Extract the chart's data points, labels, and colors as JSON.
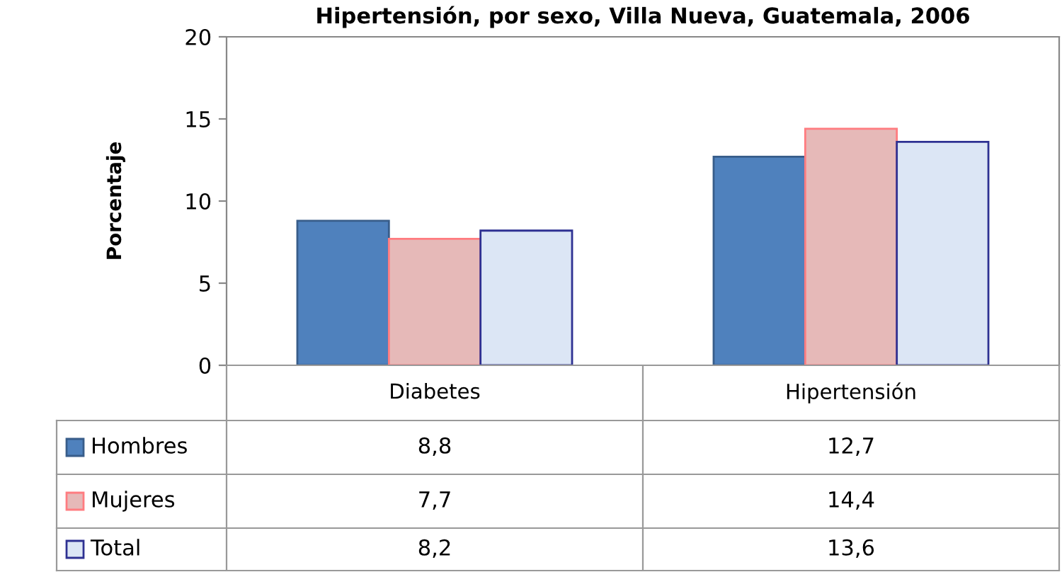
{
  "chart_data": {
    "type": "bar",
    "title": "Hipertensión, por sexo, Villa Nueva, Guatemala, 2006",
    "ylabel": "Porcentaje",
    "categories": [
      "Diabetes",
      "Hipertensión"
    ],
    "series": [
      {
        "name": "Hombres",
        "color": "#4f81bd",
        "values": [
          8.8,
          12.7
        ],
        "value_labels": [
          "8,8",
          "12,7"
        ]
      },
      {
        "name": "Mujeres",
        "color": "#e6b9b8",
        "values": [
          7.7,
          14.4
        ],
        "value_labels": [
          "7,7",
          "14,4"
        ]
      },
      {
        "name": "Total",
        "color": "#dce6f5",
        "values": [
          8.2,
          13.6
        ],
        "value_labels": [
          "8,2",
          "13,6"
        ]
      }
    ],
    "ylim": [
      0,
      20
    ],
    "yticks": [
      0,
      5,
      10,
      15,
      20
    ],
    "grid": false,
    "legend": "bottom"
  }
}
